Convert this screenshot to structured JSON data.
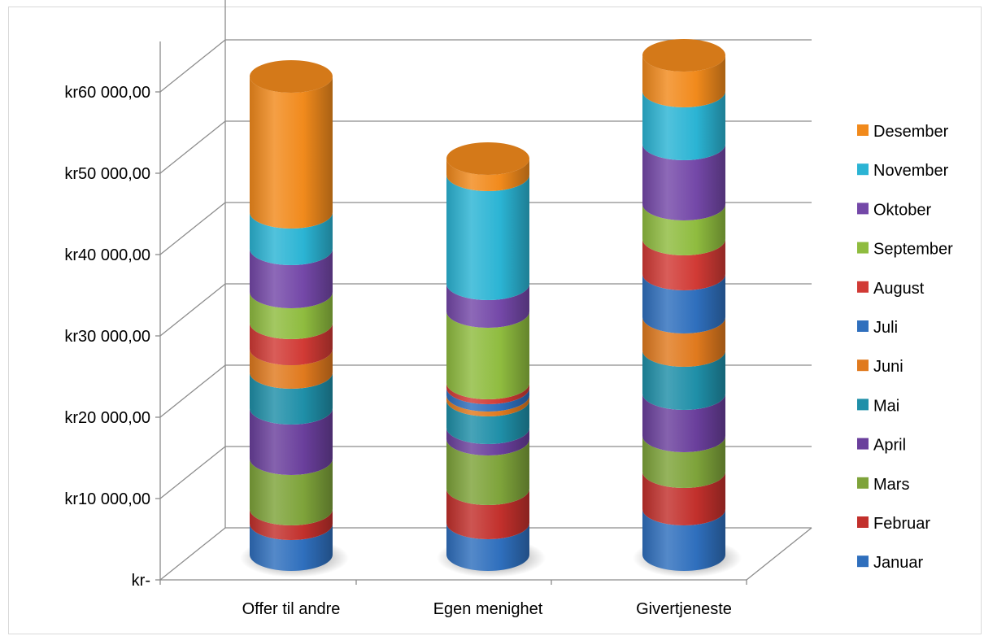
{
  "chart_data": {
    "type": "bar",
    "style": "3d-stacked-cylinder",
    "title": "",
    "xlabel": "",
    "ylabel": "",
    "ylim": [
      0,
      70000
    ],
    "y_tick_values": [
      0,
      10000,
      20000,
      30000,
      40000,
      50000,
      60000
    ],
    "y_tick_labels": [
      "kr-",
      "kr10 000,00",
      "kr20 000,00",
      "kr30 000,00",
      "kr40 000,00",
      "kr50 000,00",
      "kr60 000,00"
    ],
    "grid": true,
    "legend_position": "right",
    "categories": [
      "Offer til andre",
      "Egen menighet",
      "Givertjeneste"
    ],
    "series": [
      {
        "name": "Januar",
        "color": "#2f6fbd",
        "values": [
          3800,
          3900,
          5600
        ]
      },
      {
        "name": "Februar",
        "color": "#c2302c",
        "values": [
          1800,
          4200,
          4600
        ]
      },
      {
        "name": "Mars",
        "color": "#7ea33a",
        "values": [
          6200,
          6100,
          4400
        ]
      },
      {
        "name": "April",
        "color": "#6a3f9c",
        "values": [
          6200,
          1400,
          5200
        ]
      },
      {
        "name": "Mai",
        "color": "#1f8fa8",
        "values": [
          4400,
          3400,
          5300
        ]
      },
      {
        "name": "Juni",
        "color": "#e07a1e",
        "values": [
          2900,
          600,
          4100
        ]
      },
      {
        "name": "Juli",
        "color": "#2f6fbd",
        "values": [
          0,
          900,
          5300
        ]
      },
      {
        "name": "August",
        "color": "#d13a35",
        "values": [
          3200,
          600,
          4300
        ]
      },
      {
        "name": "September",
        "color": "#8fbc3f",
        "values": [
          3800,
          8800,
          4300
        ]
      },
      {
        "name": "Oktober",
        "color": "#7448a8",
        "values": [
          5300,
          3400,
          7400
        ]
      },
      {
        "name": "November",
        "color": "#2bb4d4",
        "values": [
          4500,
          13400,
          6500
        ]
      },
      {
        "name": "Desember",
        "color": "#f18a1c",
        "values": [
          16700,
          2000,
          4400
        ]
      }
    ]
  }
}
